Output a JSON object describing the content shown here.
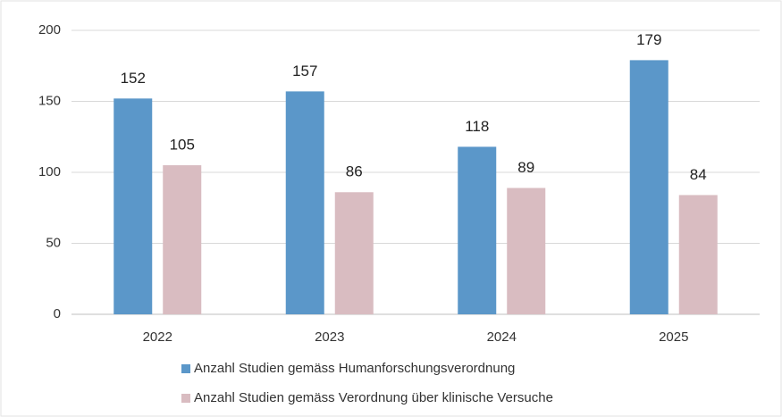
{
  "chart_data": {
    "type": "bar",
    "categories": [
      "2022",
      "2023",
      "2024",
      "2025"
    ],
    "series": [
      {
        "name": "Anzahl Studien gemäss Humanforschungsverordnung",
        "color": "#5b97c9",
        "values": [
          152,
          157,
          118,
          179
        ]
      },
      {
        "name": "Anzahl Studien gemäss Verordnung über klinische Versuche",
        "color": "#d9bcc1",
        "values": [
          105,
          86,
          89,
          84
        ]
      }
    ],
    "ylim": [
      0,
      200
    ],
    "yticks": [
      0,
      50,
      100,
      150,
      200
    ],
    "grid": true,
    "legend": "bottom"
  }
}
